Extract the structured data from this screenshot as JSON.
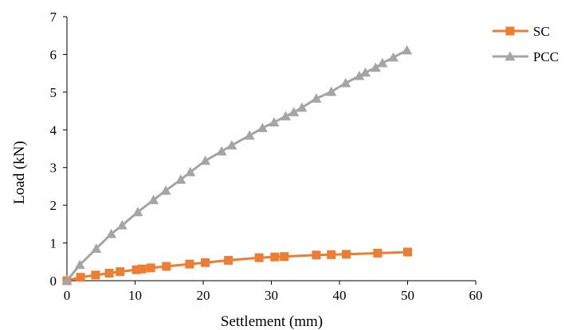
{
  "chart_data": {
    "type": "line",
    "title": "",
    "xlabel": "Settlement (mm)",
    "ylabel": "Load (kN)",
    "xlim": [
      0,
      60
    ],
    "ylim": [
      0,
      7
    ],
    "xticks": [
      0,
      10,
      20,
      30,
      40,
      50,
      60
    ],
    "yticks": [
      0,
      1,
      2,
      3,
      4,
      5,
      6,
      7
    ],
    "xtick_labels": [
      "0",
      "10",
      "20",
      "30",
      "40",
      "50",
      "60"
    ],
    "ytick_labels": [
      "0",
      "1",
      "2",
      "3",
      "4",
      "5",
      "6",
      "7"
    ],
    "grid": false,
    "legend_position": "right",
    "series": [
      {
        "name": "SC",
        "color": "#ED7D31",
        "marker": "square",
        "x": [
          0,
          2,
          4.2,
          6.2,
          7.8,
          10.2,
          11,
          12.3,
          14.6,
          18,
          20.3,
          23.7,
          28.2,
          30.5,
          31.9,
          36.6,
          38.8,
          41,
          45.6,
          50
        ],
        "y": [
          0,
          0.09,
          0.15,
          0.2,
          0.24,
          0.29,
          0.31,
          0.34,
          0.38,
          0.44,
          0.48,
          0.54,
          0.61,
          0.63,
          0.64,
          0.68,
          0.69,
          0.7,
          0.73,
          0.76
        ]
      },
      {
        "name": "PCC",
        "color": "#A5A5A5",
        "marker": "triangle",
        "x": [
          0,
          1.9,
          4.3,
          6.5,
          8.1,
          10.4,
          12.7,
          14.5,
          16.7,
          18.1,
          20.3,
          22.7,
          24.2,
          26.8,
          28.7,
          30.4,
          32.1,
          33.3,
          34.5,
          36.6,
          38.8,
          40.9,
          42.9,
          43.8,
          45.3,
          46.3,
          47.9,
          49.9
        ],
        "y": [
          0,
          0.42,
          0.85,
          1.24,
          1.47,
          1.82,
          2.14,
          2.39,
          2.68,
          2.88,
          3.18,
          3.43,
          3.59,
          3.85,
          4.05,
          4.2,
          4.36,
          4.47,
          4.59,
          4.83,
          5.01,
          5.24,
          5.43,
          5.52,
          5.65,
          5.77,
          5.92,
          6.11
        ]
      }
    ]
  }
}
